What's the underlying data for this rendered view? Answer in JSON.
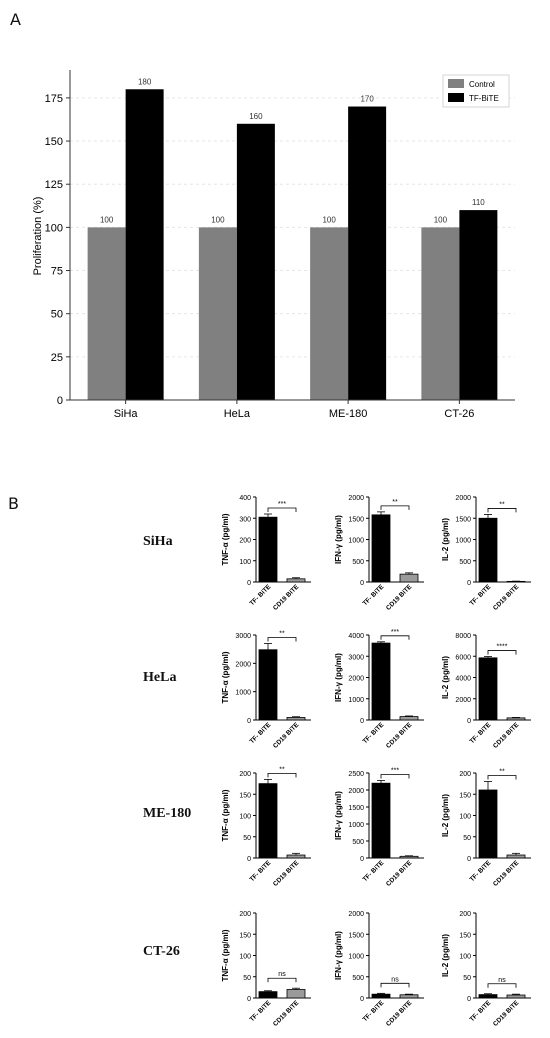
{
  "panels": {
    "a": "A",
    "b": "B"
  },
  "chart_data": [
    {
      "type": "bar",
      "panel": "A",
      "categories": [
        "SiHa",
        "HeLa",
        "ME-180",
        "CT-26"
      ],
      "series": [
        {
          "name": "Control",
          "values": [
            100,
            100,
            100,
            100
          ],
          "color": "#808080"
        },
        {
          "name": "TF-BiTE",
          "values": [
            180,
            160,
            170,
            110
          ],
          "color": "#000000"
        }
      ],
      "data_labels": [
        [
          "100",
          "100",
          "100",
          "100"
        ],
        [
          "180",
          "160",
          "170",
          "110"
        ]
      ],
      "xlabel": "",
      "ylabel": "Proliferation (%)",
      "ylim": [
        0,
        190
      ],
      "yticks": [
        0,
        25,
        50,
        75,
        100,
        125,
        150,
        175
      ],
      "grid": true,
      "legend": "top-right"
    },
    {
      "type": "bar",
      "panel": "B",
      "rows": [
        "SiHa",
        "HeLa",
        "ME-180",
        "CT-26"
      ],
      "categories": [
        "TF- BiTE",
        "CD19 BiTE"
      ],
      "colors": [
        "#000000",
        "#9a9a9a"
      ],
      "subplots": [
        {
          "row": "SiHa",
          "ylabel": "TNF-α (pg/ml)",
          "ylim": [
            0,
            400
          ],
          "yticks": [
            "0",
            "100",
            "200",
            "300",
            "400"
          ],
          "values": [
            305,
            15
          ],
          "errors": [
            15,
            5
          ],
          "sig": "***"
        },
        {
          "row": "SiHa",
          "ylabel": "IFN-γ (pg/ml)",
          "ylim": [
            0,
            2000
          ],
          "yticks": [
            "0",
            "500",
            "1000",
            "1500",
            "2000"
          ],
          "values": [
            1580,
            185
          ],
          "errors": [
            70,
            30
          ],
          "sig": "**"
        },
        {
          "row": "SiHa",
          "ylabel": "IL-2 (pg/ml)",
          "ylim": [
            0,
            2000
          ],
          "yticks": [
            "0",
            "500",
            "1000",
            "1500",
            "2000"
          ],
          "values": [
            1500,
            15
          ],
          "errors": [
            90,
            5
          ],
          "sig": "**"
        },
        {
          "row": "HeLa",
          "ylabel": "TNF-α (pg/ml)",
          "ylim": [
            0,
            3000
          ],
          "yticks": [
            "0",
            "1000",
            "2000",
            "3000"
          ],
          "values": [
            2480,
            90
          ],
          "errors": [
            220,
            25
          ],
          "sig": "**"
        },
        {
          "row": "HeLa",
          "ylabel": "IFN-γ (pg/ml)",
          "ylim": [
            0,
            4000
          ],
          "yticks": [
            "0",
            "1000",
            "2000",
            "3000",
            "4000"
          ],
          "values": [
            3620,
            160
          ],
          "errors": [
            60,
            30
          ],
          "sig": "***"
        },
        {
          "row": "HeLa",
          "ylabel": "IL-2 (pg/ml)",
          "ylim": [
            0,
            8000
          ],
          "yticks": [
            "0",
            "2000",
            "4000",
            "6000",
            "8000"
          ],
          "values": [
            5850,
            200
          ],
          "errors": [
            120,
            40
          ],
          "sig": "****"
        },
        {
          "row": "ME-180",
          "ylabel": "TNF-α (pg/ml)",
          "ylim": [
            0,
            200
          ],
          "yticks": [
            "0",
            "50",
            "100",
            "150",
            "200"
          ],
          "values": [
            175,
            7
          ],
          "errors": [
            10,
            4
          ],
          "sig": "**"
        },
        {
          "row": "ME-180",
          "ylabel": "IFN-γ (pg/ml)",
          "ylim": [
            0,
            2500
          ],
          "yticks": [
            "0",
            "500",
            "1000",
            "1500",
            "2000",
            "2500"
          ],
          "values": [
            2200,
            50
          ],
          "errors": [
            80,
            15
          ],
          "sig": "***"
        },
        {
          "row": "ME-180",
          "ylabel": "IL-2 (pg/ml)",
          "ylim": [
            0,
            200
          ],
          "yticks": [
            "0",
            "50",
            "100",
            "150",
            "200"
          ],
          "values": [
            160,
            7
          ],
          "errors": [
            20,
            4
          ],
          "sig": "**"
        },
        {
          "row": "CT-26",
          "ylabel": "TNF-α (pg/ml)",
          "ylim": [
            0,
            200
          ],
          "yticks": [
            "0",
            "50",
            "100",
            "150",
            "200"
          ],
          "values": [
            15,
            20
          ],
          "errors": [
            2,
            3
          ],
          "sig": "ns"
        },
        {
          "row": "CT-26",
          "ylabel": "IFN-γ (pg/ml)",
          "ylim": [
            0,
            2000
          ],
          "yticks": [
            "0",
            "500",
            "1000",
            "1500",
            "2000"
          ],
          "values": [
            90,
            75
          ],
          "errors": [
            20,
            15
          ],
          "sig": "ns"
        },
        {
          "row": "CT-26",
          "ylabel": "IL-2 (pg/ml)",
          "ylim": [
            0,
            200
          ],
          "yticks": [
            "0",
            "50",
            "100",
            "150",
            "200"
          ],
          "values": [
            8,
            7
          ],
          "errors": [
            2,
            2
          ],
          "sig": "ns"
        }
      ]
    }
  ]
}
